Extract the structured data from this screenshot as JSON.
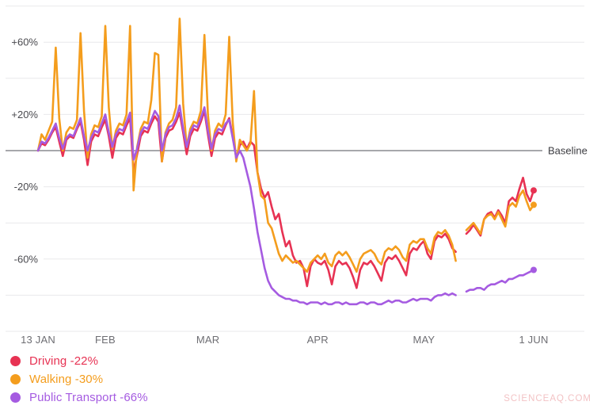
{
  "chart_data": {
    "type": "line",
    "title": "",
    "x_ticks": [
      {
        "label": "13 JAN",
        "day": 0
      },
      {
        "label": "FEB",
        "day": 19
      },
      {
        "label": "MAR",
        "day": 48
      },
      {
        "label": "APR",
        "day": 79
      },
      {
        "label": "MAY",
        "day": 109
      },
      {
        "label": "1 JUN",
        "day": 140
      }
    ],
    "y_axis": {
      "unit": "%",
      "gridline_values": [
        80,
        60,
        40,
        20,
        0,
        -20,
        -40,
        -60,
        -80,
        -100
      ],
      "labeled_ticks": [
        {
          "value": 60,
          "label": "+60%"
        },
        {
          "value": 20,
          "label": "+20%"
        },
        {
          "value": -20,
          "label": "-20%"
        },
        {
          "value": -60,
          "label": "-60%"
        }
      ],
      "baseline_value": 0,
      "baseline_label": "Baseline",
      "ylim": [
        -100,
        88
      ],
      "grid_on": true
    },
    "legend_position": "bottom-left",
    "series": [
      {
        "id": "driving",
        "legend_label": "Driving -22%",
        "latest_value_pct": -22,
        "color": "#E73253",
        "values": [
          0,
          4,
          3,
          6,
          10,
          13,
          5,
          -3,
          6,
          8,
          7,
          12,
          16,
          6,
          -8,
          5,
          9,
          8,
          13,
          17,
          8,
          -4,
          7,
          10,
          9,
          14,
          18,
          -12,
          -2,
          8,
          11,
          10,
          15,
          19,
          16,
          -6,
          7,
          11,
          12,
          16,
          21,
          10,
          -2,
          8,
          12,
          11,
          16,
          22,
          9,
          -3,
          7,
          10,
          9,
          14,
          18,
          8,
          -4,
          3,
          5,
          1,
          5,
          3,
          -12,
          -21,
          -26,
          -23,
          -31,
          -38,
          -35,
          -45,
          -53,
          -50,
          -58,
          -62,
          -61,
          -65,
          -75,
          -64,
          -60,
          -62,
          -63,
          -61,
          -66,
          -74,
          -64,
          -61,
          -63,
          -62,
          -65,
          -70,
          -76,
          -66,
          -62,
          -63,
          -61,
          -64,
          -68,
          -72,
          -62,
          -59,
          -60,
          -58,
          -61,
          -65,
          -69,
          -57,
          -54,
          -55,
          -52,
          -50,
          -57,
          -60,
          -50,
          -47,
          -48,
          -46,
          -49,
          -54,
          -56,
          null,
          null,
          -46,
          -44,
          -41,
          -44,
          -47,
          -38,
          -35,
          -34,
          -37,
          -33,
          -36,
          -40,
          -28,
          -26,
          -28,
          -21,
          -15,
          -24,
          -28,
          -22
        ]
      },
      {
        "id": "walking",
        "legend_label": "Walking -30%",
        "latest_value_pct": -30,
        "color": "#F49D1D",
        "values": [
          0,
          9,
          6,
          11,
          16,
          57,
          18,
          0,
          10,
          13,
          12,
          17,
          65,
          22,
          -4,
          9,
          14,
          13,
          19,
          69,
          24,
          1,
          11,
          15,
          14,
          20,
          69,
          -22,
          2,
          12,
          16,
          15,
          28,
          54,
          53,
          -6,
          10,
          15,
          17,
          24,
          73,
          26,
          2,
          12,
          16,
          15,
          22,
          64,
          20,
          0,
          11,
          15,
          13,
          20,
          63,
          16,
          -6,
          6,
          3,
          0,
          4,
          33,
          -12,
          -25,
          -27,
          -40,
          -43,
          -50,
          -57,
          -61,
          -58,
          -60,
          -62,
          -61,
          -63,
          -65,
          -67,
          -62,
          -60,
          -58,
          -60,
          -57,
          -62,
          -64,
          -58,
          -56,
          -58,
          -56,
          -59,
          -63,
          -67,
          -60,
          -57,
          -56,
          -55,
          -57,
          -61,
          -63,
          -56,
          -54,
          -55,
          -53,
          -55,
          -59,
          -61,
          -52,
          -50,
          -51,
          -49,
          -49,
          -54,
          -57,
          -48,
          -45,
          -46,
          -44,
          -47,
          -52,
          -61,
          null,
          null,
          -44,
          -42,
          -40,
          -43,
          -46,
          -38,
          -36,
          -35,
          -38,
          -34,
          -38,
          -42,
          -31,
          -29,
          -31,
          -25,
          -22,
          -28,
          -33,
          -30
        ]
      },
      {
        "id": "public-transport",
        "legend_label": "Public Transport -66%",
        "latest_value_pct": -66,
        "color": "#A55BE1",
        "values": [
          0,
          5,
          4,
          7,
          11,
          15,
          7,
          1,
          7,
          9,
          8,
          13,
          18,
          8,
          0,
          7,
          11,
          10,
          15,
          20,
          10,
          2,
          9,
          12,
          11,
          16,
          21,
          -5,
          1,
          10,
          13,
          12,
          17,
          22,
          19,
          0,
          9,
          13,
          14,
          18,
          25,
          12,
          2,
          10,
          14,
          13,
          18,
          24,
          11,
          1,
          9,
          12,
          11,
          15,
          17,
          7,
          -4,
          0,
          -4,
          -12,
          -20,
          -32,
          -45,
          -55,
          -65,
          -72,
          -76,
          -78,
          -80,
          -81,
          -82,
          -82,
          -83,
          -83,
          -84,
          -84,
          -85,
          -84,
          -84,
          -84,
          -85,
          -84,
          -85,
          -85,
          -84,
          -84,
          -85,
          -84,
          -85,
          -85,
          -85,
          -84,
          -84,
          -85,
          -84,
          -84,
          -85,
          -85,
          -84,
          -83,
          -84,
          -83,
          -83,
          -84,
          -84,
          -83,
          -82,
          -83,
          -82,
          -82,
          -82,
          -83,
          -81,
          -80,
          -80,
          -79,
          -80,
          -79,
          -80,
          null,
          null,
          -78,
          -77,
          -77,
          -76,
          -76,
          -77,
          -75,
          -74,
          -74,
          -73,
          -72,
          -73,
          -71,
          -71,
          -70,
          -69,
          -69,
          -68,
          -67,
          -66
        ]
      }
    ]
  },
  "watermark": "SCIENCEAQ.COM"
}
